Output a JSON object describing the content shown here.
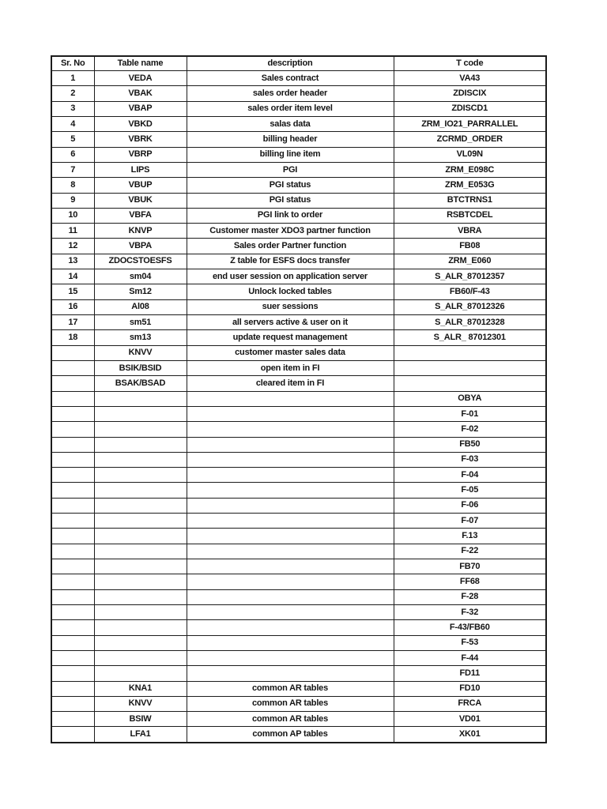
{
  "table": {
    "columns": [
      "Sr. No",
      "Table name",
      "description",
      "T code"
    ],
    "rows": [
      [
        "1",
        "VEDA",
        "Sales contract",
        "VA43"
      ],
      [
        "2",
        "VBAK",
        "sales order header",
        "ZDISCIX"
      ],
      [
        "3",
        "VBAP",
        "sales order item level",
        "ZDISCD1"
      ],
      [
        "4",
        "VBKD",
        "salas data",
        "ZRM_IO21_PARRALLEL"
      ],
      [
        "5",
        "VBRK",
        "billing header",
        "ZCRMD_ORDER"
      ],
      [
        "6",
        "VBRP",
        "billing line item",
        "VL09N"
      ],
      [
        "7",
        "LIPS",
        "PGI",
        "ZRM_E098C"
      ],
      [
        "8",
        "VBUP",
        "PGI status",
        "ZRM_E053G"
      ],
      [
        "9",
        "VBUK",
        "PGI status",
        "BTCTRNS1"
      ],
      [
        "10",
        "VBFA",
        "PGI link to order",
        "RSBTCDEL"
      ],
      [
        "11",
        "KNVP",
        "Customer master XDO3 partner function",
        "VBRA"
      ],
      [
        "12",
        "VBPA",
        "Sales order Partner function",
        "FB08"
      ],
      [
        "13",
        "ZDOCSTOESFS",
        "Z table for ESFS docs transfer",
        "ZRM_E060"
      ],
      [
        "14",
        "sm04",
        "end user session on application server",
        "S_ALR_87012357"
      ],
      [
        "15",
        "Sm12",
        "Unlock locked tables",
        "FB60/F-43"
      ],
      [
        "16",
        "Al08",
        "suer sessions",
        "S_ALR_87012326"
      ],
      [
        "17",
        "sm51",
        "all servers active & user on it",
        "S_ALR_87012328"
      ],
      [
        "18",
        "sm13",
        "update request management",
        "S_ALR_ 87012301"
      ],
      [
        "",
        "KNVV",
        "customer master sales data",
        ""
      ],
      [
        "",
        "BSIK/BSID",
        "open item in FI",
        ""
      ],
      [
        "",
        "BSAK/BSAD",
        "cleared item in FI",
        ""
      ],
      [
        "",
        "",
        "",
        "OBYA"
      ],
      [
        "",
        "",
        "",
        "F-01"
      ],
      [
        "",
        "",
        "",
        "F-02"
      ],
      [
        "",
        "",
        "",
        "FB50"
      ],
      [
        "",
        "",
        "",
        "F-03"
      ],
      [
        "",
        "",
        "",
        "F-04"
      ],
      [
        "",
        "",
        "",
        "F-05"
      ],
      [
        "",
        "",
        "",
        "F-06"
      ],
      [
        "",
        "",
        "",
        "F-07"
      ],
      [
        "",
        "",
        "",
        "F.13"
      ],
      [
        "",
        "",
        "",
        "F-22"
      ],
      [
        "",
        "",
        "",
        "FB70"
      ],
      [
        "",
        "",
        "",
        "FF68"
      ],
      [
        "",
        "",
        "",
        "F-28"
      ],
      [
        "",
        "",
        "",
        "F-32"
      ],
      [
        "",
        "",
        "",
        "F-43/FB60"
      ],
      [
        "",
        "",
        "",
        "F-53"
      ],
      [
        "",
        "",
        "",
        "F-44"
      ],
      [
        "",
        "",
        "",
        "FD11"
      ],
      [
        "",
        "KNA1",
        "common AR tables",
        "FD10"
      ],
      [
        "",
        "KNVV",
        "common AR tables",
        "FRCA"
      ],
      [
        "",
        "BSIW",
        "common AR tables",
        "VD01"
      ],
      [
        "",
        "LFA1",
        "common AP tables",
        "XK01"
      ]
    ]
  }
}
